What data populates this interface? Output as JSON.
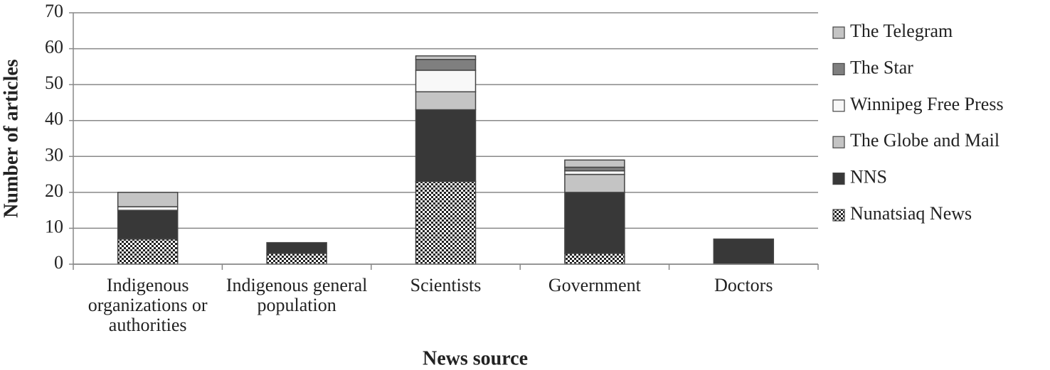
{
  "chart_data": {
    "type": "stacked-bar",
    "xlabel": "News source",
    "ylabel": "Number of articles",
    "categories": [
      "Indigenous organizations or authorities",
      "Indigenous general population",
      "Scientists",
      "Government",
      "Doctors"
    ],
    "series": [
      {
        "name": "Nunatsiaq News",
        "color": "#ffffff",
        "pattern": "checkered",
        "values": [
          7,
          3,
          23,
          3,
          0
        ]
      },
      {
        "name": "NNS",
        "color": "#383838",
        "values": [
          8,
          3,
          20,
          17,
          7
        ]
      },
      {
        "name": "The Globe and Mail",
        "color": "#c4c4c4",
        "values": [
          0,
          0,
          5,
          5,
          0
        ]
      },
      {
        "name": "Winnipeg Free Press",
        "color": "#f8f8f8",
        "values": [
          1,
          0,
          6,
          1,
          0
        ]
      },
      {
        "name": "The Star",
        "color": "#7f7f7f",
        "values": [
          0,
          0,
          3,
          1,
          0
        ]
      },
      {
        "name": "The Telegram",
        "color": "#c4c4c4",
        "values": [
          4,
          0,
          1,
          2,
          0
        ]
      }
    ],
    "ylim": [
      0,
      70
    ],
    "yticks": [
      0,
      10,
      20,
      30,
      40,
      50,
      60,
      70
    ],
    "grid": true,
    "legend": "right"
  }
}
